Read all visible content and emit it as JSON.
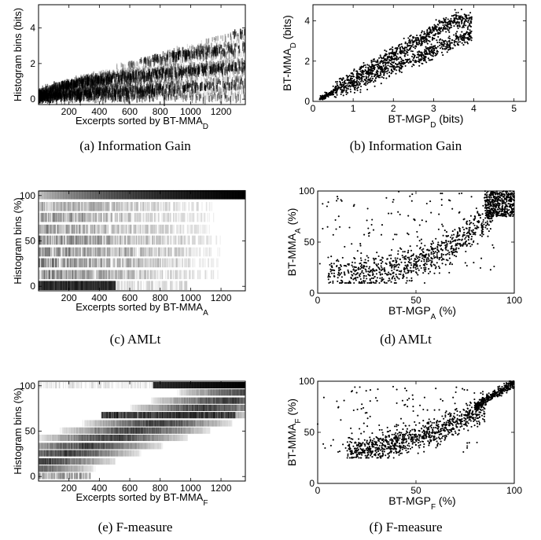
{
  "captions": [
    "(a) Information Gain",
    "(b) Information Gain",
    "(c) AMLt",
    "(d) AMLt",
    "(e) F-measure",
    "(f) F-measure"
  ],
  "chart_data": [
    {
      "type": "heatmap",
      "ylabel": "Histogram bins (bits)",
      "xlabel": "Excerpts sorted by BT-MMA",
      "xlabel_sub": "D",
      "xticks": [
        200,
        400,
        600,
        800,
        1000,
        1200
      ],
      "yticks": [
        0,
        2,
        4
      ],
      "xlim": [
        0,
        1360
      ],
      "ylim": [
        -0.3,
        5.3
      ],
      "band_centers": [
        0.0,
        0.18,
        0.8,
        1.7,
        2.6,
        3.3
      ],
      "band_end_centers": [
        0.0,
        1.0,
        2.0,
        3.0,
        3.9,
        4.3
      ]
    },
    {
      "type": "scatter",
      "ylabel": "BT-MMA",
      "ylabel_sub": "D",
      "ylabel_suffix": " (bits)",
      "xlabel": "BT-MGP",
      "xlabel_sub": "D",
      "xlabel_suffix": " (bits)",
      "xticks": [
        0,
        1,
        2,
        3,
        4,
        5
      ],
      "yticks": [
        0,
        2,
        4
      ],
      "xlim": [
        0,
        5.3
      ],
      "ylim": [
        0,
        4.8
      ],
      "n_points": 1450
    },
    {
      "type": "heatmap",
      "ylabel": "Histogram bins (%)",
      "xlabel": "Excerpts sorted by BT-MMA",
      "xlabel_sub": "A",
      "xticks": [
        200,
        400,
        600,
        800,
        1000,
        1200
      ],
      "yticks": [
        0,
        50,
        100
      ],
      "xlim": [
        0,
        1360
      ],
      "ylim": [
        -5,
        105
      ],
      "rows": [
        0,
        12,
        25,
        37,
        50,
        62,
        75,
        87,
        100
      ]
    },
    {
      "type": "scatter",
      "ylabel": "BT-MMA",
      "ylabel_sub": "A",
      "ylabel_suffix": " (%)",
      "xlabel": "BT-MGP",
      "xlabel_sub": "A",
      "xlabel_suffix": " (%)",
      "xticks": [
        0,
        50,
        100
      ],
      "yticks": [
        0,
        50,
        100
      ],
      "xlim": [
        0,
        100
      ],
      "ylim": [
        0,
        100
      ],
      "n_points": 1350
    },
    {
      "type": "heatmap",
      "ylabel": "Histogram bins (%)",
      "xlabel": "Excerpts sorted by BT-MMA",
      "xlabel_sub": "F",
      "xticks": [
        200,
        400,
        600,
        800,
        1000,
        1200
      ],
      "yticks": [
        0,
        50,
        100
      ],
      "xlim": [
        0,
        1360
      ],
      "ylim": [
        -5,
        105
      ],
      "rows": [
        0,
        8,
        16,
        25,
        33,
        42,
        50,
        58,
        67,
        75,
        83,
        92,
        100
      ]
    },
    {
      "type": "scatter",
      "ylabel": "BT-MMA",
      "ylabel_sub": "F",
      "ylabel_suffix": " (%)",
      "xlabel": "BT-MGP",
      "xlabel_sub": "F",
      "xlabel_suffix": " (%)",
      "xticks": [
        0,
        50,
        100
      ],
      "yticks": [
        0,
        50,
        100
      ],
      "xlim": [
        0,
        100
      ],
      "ylim": [
        0,
        100
      ],
      "n_points": 1350
    }
  ]
}
